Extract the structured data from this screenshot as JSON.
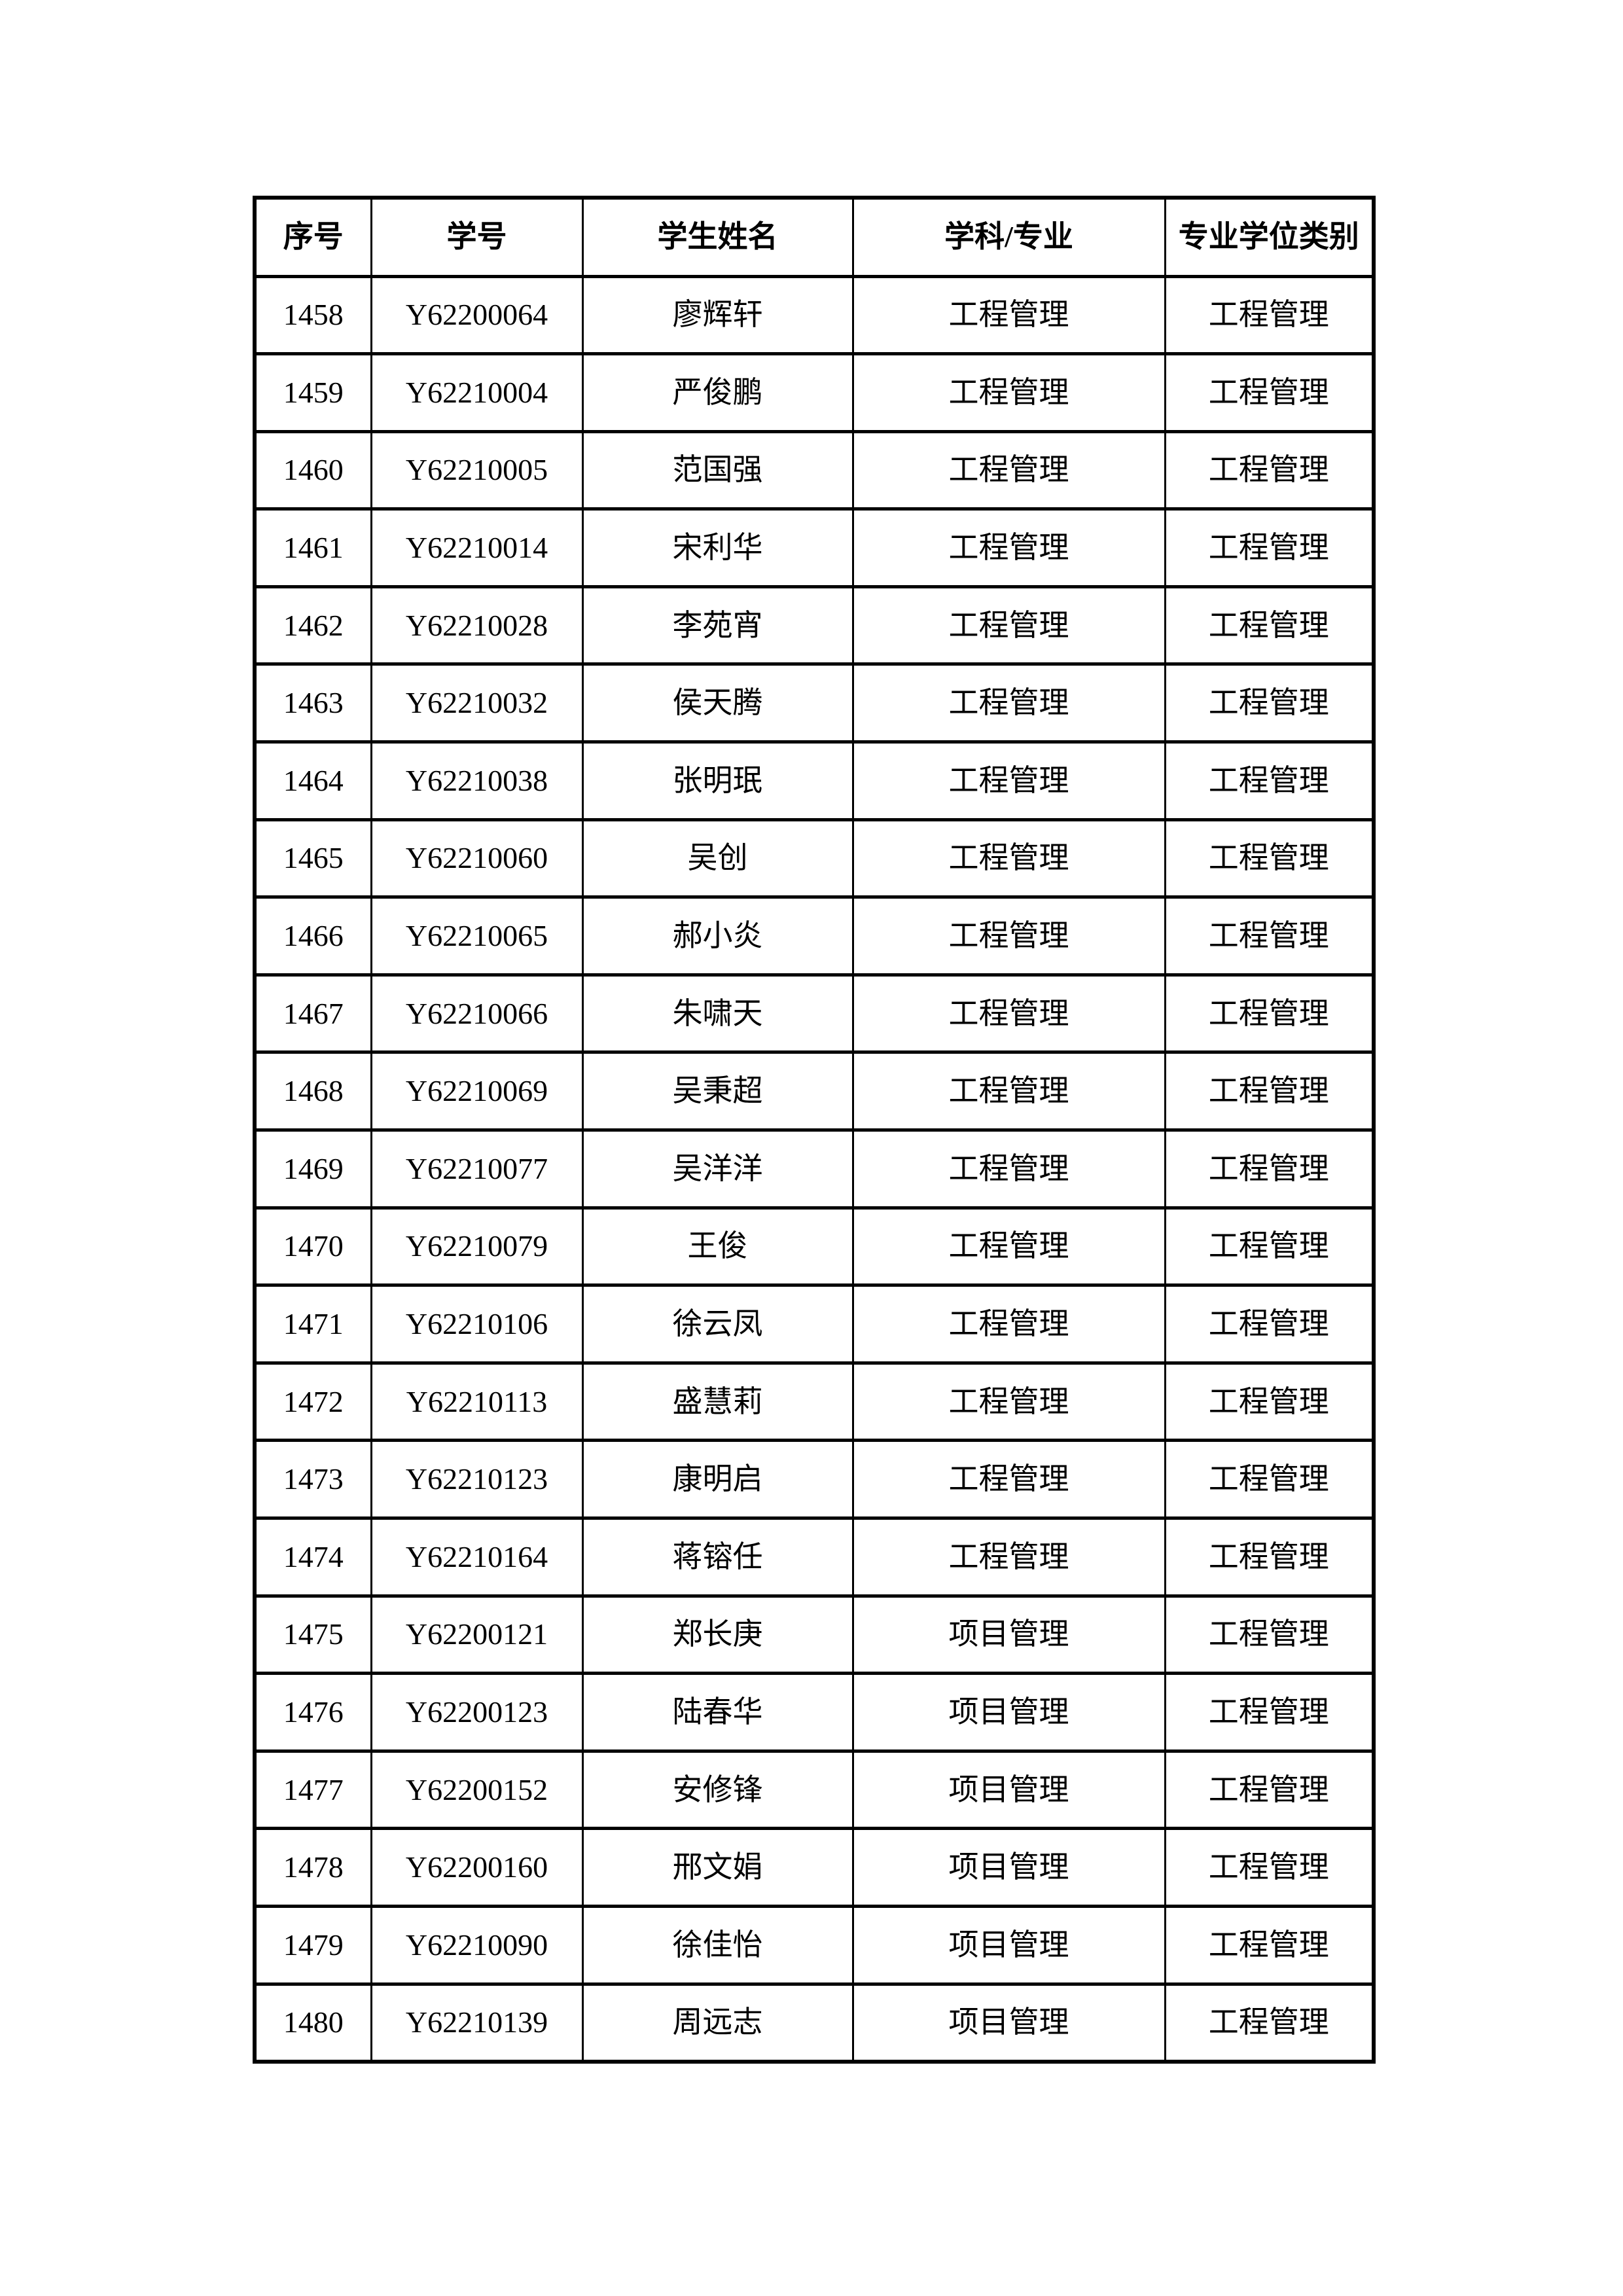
{
  "table": {
    "headers": [
      "序号",
      "学号",
      "学生姓名",
      "学科/专业",
      "专业学位类别"
    ],
    "rows": [
      [
        "1458",
        "Y62200064",
        "廖辉轩",
        "工程管理",
        "工程管理"
      ],
      [
        "1459",
        "Y62210004",
        "严俊鹏",
        "工程管理",
        "工程管理"
      ],
      [
        "1460",
        "Y62210005",
        "范国强",
        "工程管理",
        "工程管理"
      ],
      [
        "1461",
        "Y62210014",
        "宋利华",
        "工程管理",
        "工程管理"
      ],
      [
        "1462",
        "Y62210028",
        "李苑宵",
        "工程管理",
        "工程管理"
      ],
      [
        "1463",
        "Y62210032",
        "侯天腾",
        "工程管理",
        "工程管理"
      ],
      [
        "1464",
        "Y62210038",
        "张明珉",
        "工程管理",
        "工程管理"
      ],
      [
        "1465",
        "Y62210060",
        "吴创",
        "工程管理",
        "工程管理"
      ],
      [
        "1466",
        "Y62210065",
        "郝小炎",
        "工程管理",
        "工程管理"
      ],
      [
        "1467",
        "Y62210066",
        "朱啸天",
        "工程管理",
        "工程管理"
      ],
      [
        "1468",
        "Y62210069",
        "吴秉超",
        "工程管理",
        "工程管理"
      ],
      [
        "1469",
        "Y62210077",
        "吴洋洋",
        "工程管理",
        "工程管理"
      ],
      [
        "1470",
        "Y62210079",
        "王俊",
        "工程管理",
        "工程管理"
      ],
      [
        "1471",
        "Y62210106",
        "徐云凤",
        "工程管理",
        "工程管理"
      ],
      [
        "1472",
        "Y62210113",
        "盛慧莉",
        "工程管理",
        "工程管理"
      ],
      [
        "1473",
        "Y62210123",
        "康明启",
        "工程管理",
        "工程管理"
      ],
      [
        "1474",
        "Y62210164",
        "蒋镕任",
        "工程管理",
        "工程管理"
      ],
      [
        "1475",
        "Y62200121",
        "郑长庚",
        "项目管理",
        "工程管理"
      ],
      [
        "1476",
        "Y62200123",
        "陆春华",
        "项目管理",
        "工程管理"
      ],
      [
        "1477",
        "Y62200152",
        "安修锋",
        "项目管理",
        "工程管理"
      ],
      [
        "1478",
        "Y62200160",
        "邢文娟",
        "项目管理",
        "工程管理"
      ],
      [
        "1479",
        "Y62210090",
        "徐佳怡",
        "项目管理",
        "工程管理"
      ],
      [
        "1480",
        "Y62210139",
        "周远志",
        "项目管理",
        "工程管理"
      ]
    ]
  }
}
